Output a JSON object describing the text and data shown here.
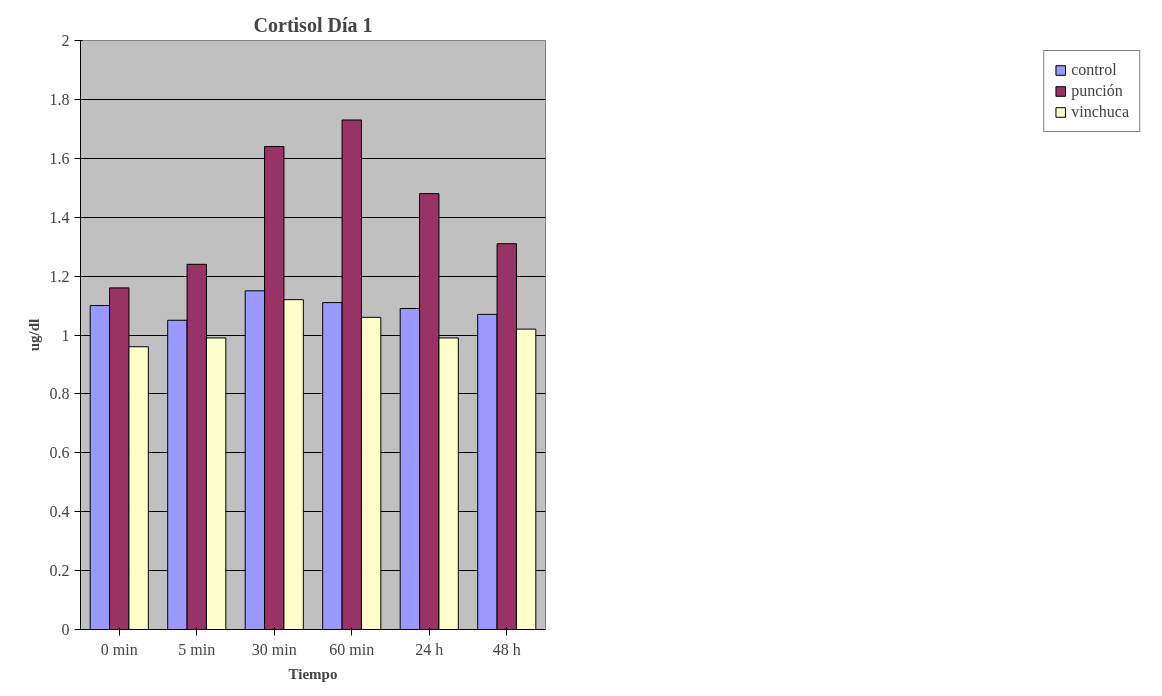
{
  "chart_data": {
    "type": "bar",
    "title": "Cortisol Día 1",
    "xlabel": "Tiempo",
    "ylabel": "ug/dl",
    "categories": [
      "0 min",
      "5 min",
      "30 min",
      "60 min",
      "24 h",
      "48 h"
    ],
    "series": [
      {
        "name": "control",
        "color": "#9999ff",
        "values": [
          1.1,
          1.05,
          1.15,
          1.11,
          1.09,
          1.07
        ]
      },
      {
        "name": "punción",
        "color": "#993366",
        "values": [
          1.16,
          1.24,
          1.64,
          1.73,
          1.48,
          1.31
        ]
      },
      {
        "name": "vinchuca",
        "color": "#ffffcc",
        "values": [
          0.96,
          0.99,
          1.12,
          1.06,
          0.99,
          1.02
        ]
      }
    ],
    "ylim": [
      0,
      2
    ],
    "yticks": [
      0,
      0.2,
      0.4,
      0.6,
      0.8,
      1,
      1.2,
      1.4,
      1.6,
      1.8,
      2
    ],
    "grid": "y",
    "legend": "right"
  }
}
